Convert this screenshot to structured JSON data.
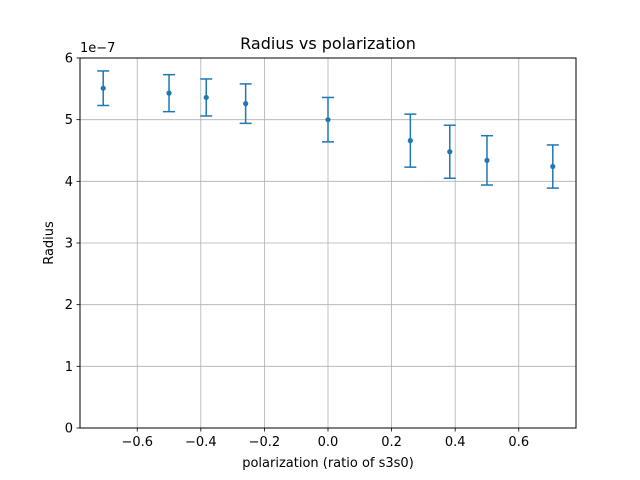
{
  "chart_data": {
    "type": "scatter",
    "title": "Radius vs polarization",
    "xlabel": "polarization (ratio of s3s0)",
    "ylabel": "Radius",
    "y_offset_label": "1e−7",
    "xlim": [
      -0.78,
      0.78
    ],
    "ylim": [
      0,
      6
    ],
    "x_ticks": [
      -0.6,
      -0.4,
      -0.2,
      0.0,
      0.2,
      0.4,
      0.6
    ],
    "x_tick_labels": [
      "−0.6",
      "−0.4",
      "−0.2",
      "0.0",
      "0.2",
      "0.4",
      "0.6"
    ],
    "y_ticks": [
      0,
      1,
      2,
      3,
      4,
      5,
      6
    ],
    "y_tick_labels": [
      "0",
      "1",
      "2",
      "3",
      "4",
      "5",
      "6"
    ],
    "grid": true,
    "color": "#1f77b4",
    "series": [
      {
        "x": [
          -0.707,
          -0.5,
          -0.383,
          -0.259,
          0.0,
          0.259,
          0.383,
          0.5,
          0.707
        ],
        "y": [
          5.51,
          5.43,
          5.36,
          5.26,
          5.0,
          4.66,
          4.48,
          4.34,
          4.24
        ],
        "yerr": [
          0.28,
          0.3,
          0.3,
          0.32,
          0.36,
          0.43,
          0.43,
          0.4,
          0.35
        ]
      }
    ]
  }
}
